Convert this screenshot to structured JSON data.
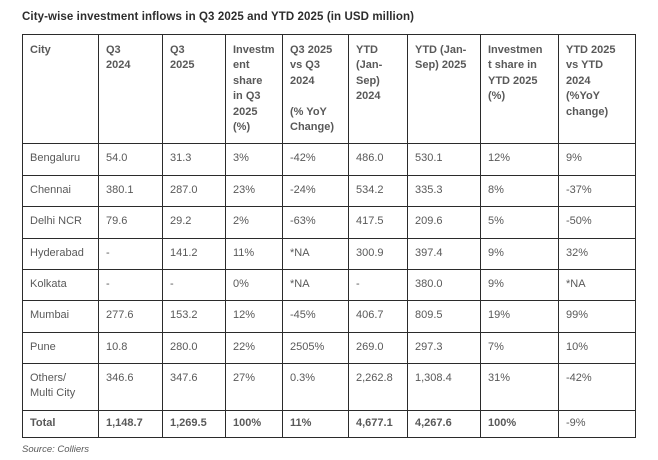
{
  "chart_data": {
    "type": "table",
    "title": "City-wise investment inflows in Q3 2025 and YTD 2025 (in USD million)",
    "source": "Source: Colliers",
    "unit": "USD million",
    "columns": [
      "City",
      "Q3\n2024",
      "Q3\n2025",
      "Investm\nent\nshare\nin Q3\n2025\n(%)",
      "Q3 2025\nvs Q3\n2024\n\n(% YoY\nChange)",
      "YTD\n(Jan-\nSep)\n2024",
      "YTD (Jan-\nSep) 2025",
      "Investmen\nt share in\nYTD 2025\n(%)",
      "YTD 2025\nvs YTD\n2024\n(%YoY\nchange)"
    ],
    "rows": [
      [
        "Bengaluru",
        "54.0",
        "31.3",
        "3%",
        "-42%",
        "486.0",
        "530.1",
        "12%",
        "9%"
      ],
      [
        "Chennai",
        "380.1",
        "287.0",
        "23%",
        "-24%",
        "534.2",
        "335.3",
        "8%",
        "-37%"
      ],
      [
        "Delhi NCR",
        "79.6",
        "29.2",
        "2%",
        "-63%",
        "417.5",
        "209.6",
        "5%",
        "-50%"
      ],
      [
        "Hyderabad",
        "-",
        "141.2",
        "11%",
        "*NA",
        "300.9",
        "397.4",
        "9%",
        "32%"
      ],
      [
        "Kolkata",
        "-",
        "-",
        "0%",
        "*NA",
        "-",
        "380.0",
        "9%",
        "*NA"
      ],
      [
        "Mumbai",
        "277.6",
        "153.2",
        "12%",
        "-45%",
        "406.7",
        "809.5",
        "19%",
        "99%"
      ],
      [
        "Pune",
        "10.8",
        "280.0",
        "22%",
        "2505%",
        "269.0",
        "297.3",
        "7%",
        "10%"
      ],
      [
        "Others/\nMulti City",
        "346.6",
        "347.6",
        "27%",
        "0.3%",
        "2,262.8",
        "1,308.4",
        "31%",
        "-42%"
      ]
    ],
    "total_row": [
      "Total",
      "1,148.7",
      "1,269.5",
      "100%",
      "11%",
      "4,677.1",
      "4,267.6",
      "100%",
      "-9%"
    ]
  }
}
